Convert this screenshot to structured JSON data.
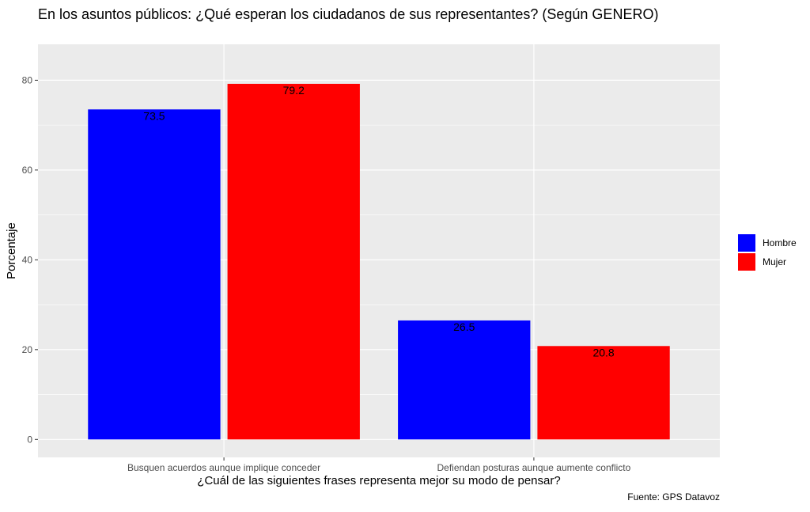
{
  "chart_data": {
    "type": "bar",
    "title": "En los asuntos públicos: ¿Qué esperan los ciudadanos de sus representantes? (Según GENERO)",
    "xlabel": "¿Cuál de las siguientes frases representa mejor su modo de pensar?",
    "ylabel": "Porcentaje",
    "caption": "Fuente: GPS Datavoz",
    "categories": [
      "Busquen acuerdos aunque implique conceder",
      "Defiendan posturas aunque aumente conflicto"
    ],
    "series": [
      {
        "name": "Hombre",
        "color": "#0000ff",
        "values": [
          73.5,
          26.5
        ],
        "labels": [
          "73.5",
          "26.5"
        ]
      },
      {
        "name": "Mujer",
        "color": "#ff0000",
        "values": [
          79.2,
          20.8
        ],
        "labels": [
          "79.2",
          "20.8"
        ]
      }
    ],
    "yticks": [
      0,
      20,
      40,
      60,
      80
    ],
    "ylim": [
      -4,
      88
    ],
    "grid": true,
    "legend_position": "right",
    "panel_color": "#ebebeb"
  }
}
